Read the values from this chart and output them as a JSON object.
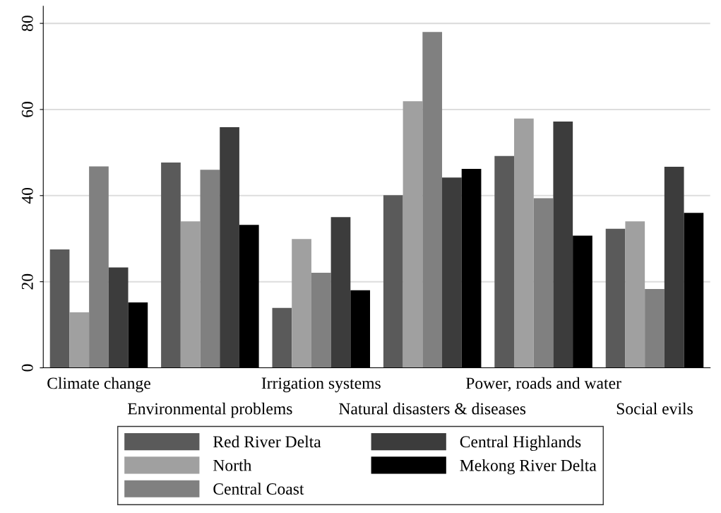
{
  "chart_data": {
    "type": "bar",
    "categories": [
      "Climate change",
      "Environmental problems",
      "Irrigation systems",
      "Natural disasters & diseases",
      "Power, roads and water",
      "Social evils"
    ],
    "series": [
      {
        "name": "Red River Delta",
        "color": "#5a5a5a",
        "values": [
          27.5,
          47.7,
          13.9,
          40.1,
          49.2,
          32.3
        ]
      },
      {
        "name": "North",
        "color": "#a0a0a0",
        "values": [
          12.9,
          34.0,
          29.9,
          61.9,
          57.9,
          34.0
        ]
      },
      {
        "name": "Central Coast",
        "color": "#808080",
        "values": [
          46.8,
          46.0,
          22.1,
          78.0,
          39.4,
          18.3
        ]
      },
      {
        "name": "Central Highlands",
        "color": "#3c3c3c",
        "values": [
          23.3,
          55.9,
          35.0,
          44.2,
          57.2,
          46.7
        ]
      },
      {
        "name": "Mekong River Delta",
        "color": "#000000",
        "values": [
          15.2,
          33.2,
          18.0,
          46.2,
          30.7,
          36.0
        ]
      }
    ],
    "ylim": [
      0,
      84
    ],
    "yticks": [
      0,
      20,
      40,
      60,
      80
    ],
    "grid": "y",
    "legend": "bottom"
  }
}
